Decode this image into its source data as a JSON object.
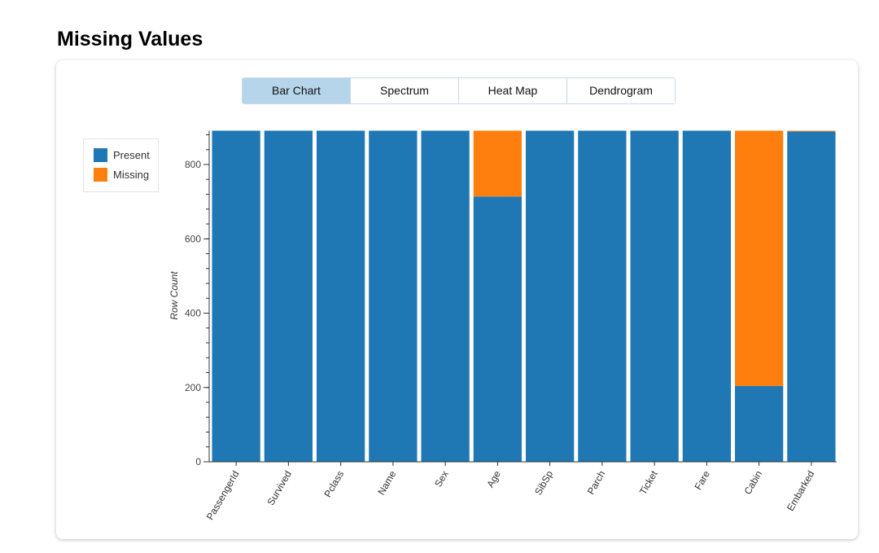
{
  "title": "Missing Values",
  "tabs": [
    {
      "label": "Bar Chart",
      "active": true
    },
    {
      "label": "Spectrum"
    },
    {
      "label": "Heat Map"
    },
    {
      "label": "Dendrogram"
    }
  ],
  "colors": {
    "present": "#1f77b4",
    "missing": "#ff7f0e",
    "active_tab": "#b6d5ea"
  },
  "chart_data": {
    "type": "bar",
    "stacked": true,
    "ylabel": "Row Count",
    "xlabel": "",
    "ylim": [
      0,
      891
    ],
    "yticks": [
      0,
      200,
      400,
      600,
      800
    ],
    "grid": false,
    "legend": "top-left",
    "categories": [
      "PassengerId",
      "Survived",
      "Pclass",
      "Name",
      "Sex",
      "Age",
      "SibSp",
      "Parch",
      "Ticket",
      "Fare",
      "Cabin",
      "Embarked"
    ],
    "series": [
      {
        "name": "Present",
        "values": [
          891,
          891,
          891,
          891,
          891,
          714,
          891,
          891,
          891,
          891,
          204,
          889
        ]
      },
      {
        "name": "Missing",
        "values": [
          0,
          0,
          0,
          0,
          0,
          177,
          0,
          0,
          0,
          0,
          687,
          2
        ]
      }
    ]
  }
}
